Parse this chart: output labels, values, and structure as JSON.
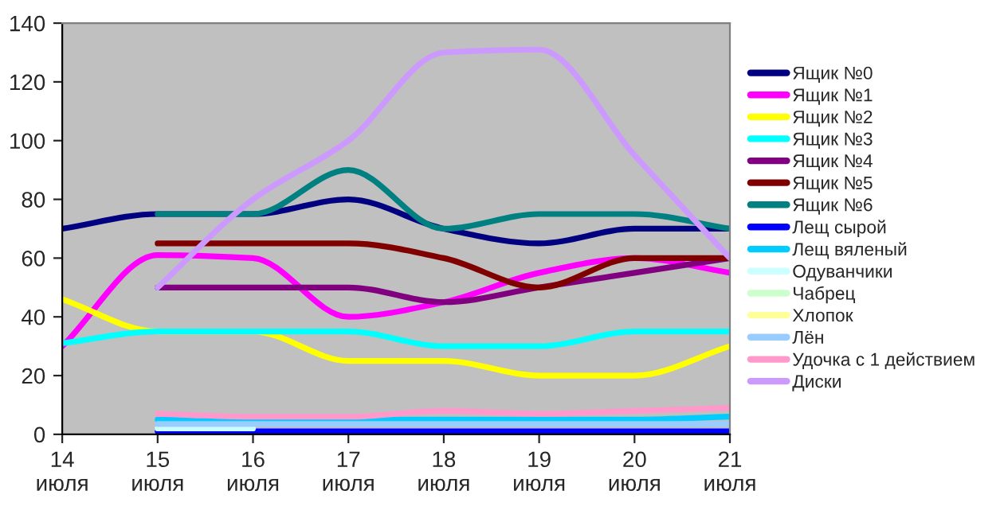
{
  "chart_data": {
    "type": "line",
    "categories": [
      "14\nиюля",
      "15\nиюля",
      "16\nиюля",
      "17\nиюля",
      "18\nиюля",
      "19\nиюля",
      "20\nиюля",
      "21\nиюля"
    ],
    "ylim": [
      0,
      140
    ],
    "yticks": [
      0,
      20,
      40,
      60,
      80,
      100,
      120,
      140
    ],
    "grid": false,
    "legend": "right",
    "marker": "none",
    "line_style": "solid",
    "series": [
      {
        "name": "Ящик №0",
        "color": "#000080",
        "values": [
          70,
          75,
          75,
          80,
          70,
          65,
          70,
          70
        ]
      },
      {
        "name": "Ящик №1",
        "color": "#ff00ff",
        "values": [
          30,
          61,
          60,
          40,
          45,
          55,
          60,
          55
        ]
      },
      {
        "name": "Ящик №2",
        "color": "#ffff00",
        "values": [
          46,
          35,
          35,
          25,
          25,
          20,
          20,
          30
        ]
      },
      {
        "name": "Ящик №3",
        "color": "#00ffff",
        "values": [
          31,
          35,
          35,
          35,
          30,
          30,
          35,
          35
        ]
      },
      {
        "name": "Ящик №4",
        "color": "#800080",
        "values": [
          null,
          50,
          50,
          50,
          45,
          50,
          55,
          60
        ]
      },
      {
        "name": "Ящик №5",
        "color": "#800000",
        "values": [
          null,
          65,
          65,
          65,
          60,
          50,
          60,
          60
        ]
      },
      {
        "name": "Ящик №6",
        "color": "#008080",
        "values": [
          null,
          75,
          75,
          90,
          70,
          75,
          75,
          70
        ]
      },
      {
        "name": "Лещ сырой",
        "color": "#0000ff",
        "values": [
          null,
          1,
          1,
          1,
          1,
          1,
          1,
          1
        ]
      },
      {
        "name": "Лещ вяленый",
        "color": "#00ccff",
        "values": [
          null,
          5,
          5,
          5,
          5,
          5,
          5,
          6
        ]
      },
      {
        "name": "Одуванчики",
        "color": "#ccffff",
        "values": [
          null,
          2,
          2,
          null,
          null,
          null,
          null,
          null
        ]
      },
      {
        "name": "Чабрец",
        "color": "#ccffcc",
        "values": [
          null,
          null,
          null,
          null,
          null,
          null,
          null,
          null
        ]
      },
      {
        "name": "Хлопок",
        "color": "#ffff99",
        "values": [
          null,
          null,
          null,
          null,
          null,
          null,
          null,
          null
        ]
      },
      {
        "name": "Лён",
        "color": "#99ccff",
        "values": [
          null,
          3.5,
          3.5,
          3.5,
          3.5,
          3.5,
          3.5,
          3.5
        ]
      },
      {
        "name": "Удочка с 1 действием",
        "color": "#ff99cc",
        "values": [
          null,
          7,
          6,
          6,
          8,
          7,
          8,
          9
        ]
      },
      {
        "name": "Диски",
        "color": "#cc99ff",
        "values": [
          null,
          50,
          80,
          100,
          130,
          131,
          95,
          60
        ]
      }
    ]
  }
}
